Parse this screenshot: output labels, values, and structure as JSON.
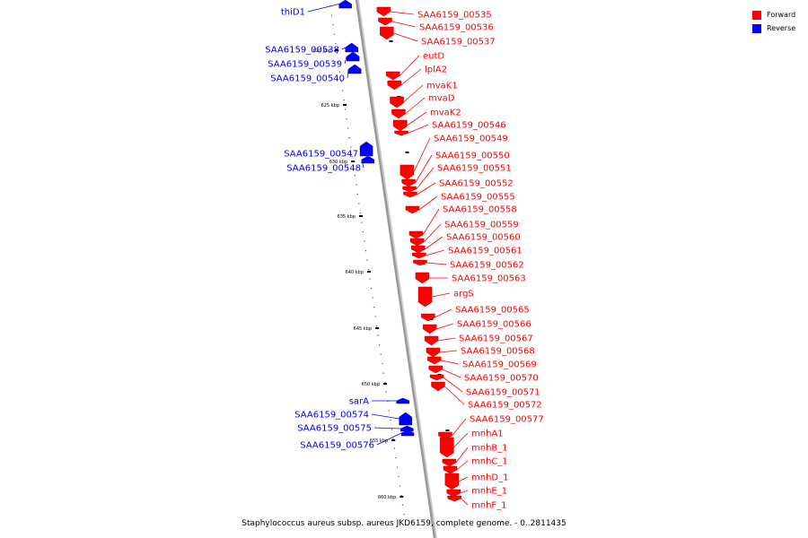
{
  "legend": {
    "items": [
      {
        "label": "Forward",
        "color": "#ff0000"
      },
      {
        "label": "Reverse",
        "color": "#0000ff"
      }
    ]
  },
  "caption": "Staphylococcus aureus subsp. aureus JKD6159, complete genome. - 0..2811435",
  "colors": {
    "forward": "#ff0000",
    "reverse": "#0000ff",
    "backbone": "#999999",
    "ticks": "#000000"
  },
  "ticks": [
    "620 kbp",
    "625 kbp",
    "630 kbp",
    "635 kbp",
    "640 kbp",
    "645 kbp",
    "650 kbp",
    "655 kbp",
    "660 kbp"
  ],
  "forward_genes": [
    "SAA6159_00535",
    "SAA6159_00536",
    "SAA6159_00537",
    "eutD",
    "lplA2",
    "mvaK1",
    "mvaD",
    "mvaK2",
    "SAA6159_00546",
    "SAA6159_00549",
    "SAA6159_00550",
    "SAA6159_00551",
    "SAA6159_00552",
    "SAA6159_00555",
    "SAA6159_00558",
    "SAA6159_00559",
    "SAA6159_00560",
    "SAA6159_00561",
    "SAA6159_00562",
    "SAA6159_00563",
    "argS",
    "SAA6159_00565",
    "SAA6159_00566",
    "SAA6159_00567",
    "SAA6159_00568",
    "SAA6159_00569",
    "SAA6159_00570",
    "SAA6159_00571",
    "SAA6159_00572",
    "SAA6159_00577",
    "mnhA1",
    "mnhB_1",
    "mnhC_1",
    "mnhD_1",
    "mnhE_1",
    "mnhF_1"
  ],
  "reverse_genes": [
    "thiD1",
    "SAA6159_00538",
    "SAA6159_00539",
    "SAA6159_00540",
    "SAA6159_00547",
    "SAA6159_00548",
    "sarA",
    "SAA6159_00574",
    "SAA6159_00575",
    "SAA6159_00576"
  ]
}
